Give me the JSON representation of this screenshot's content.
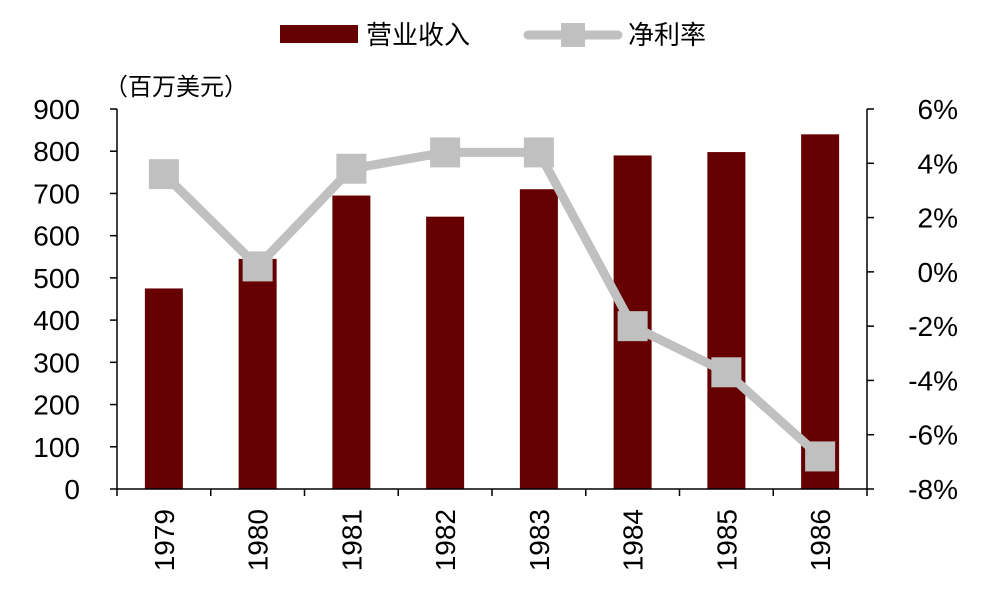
{
  "chart_data": {
    "type": "bar+line",
    "categories": [
      "1979",
      "1980",
      "1981",
      "1982",
      "1983",
      "1984",
      "1985",
      "1986"
    ],
    "series": [
      {
        "name": "营业收入",
        "type": "bar",
        "axis": "left",
        "color": "#660000",
        "values": [
          475,
          545,
          695,
          645,
          710,
          790,
          798,
          840
        ]
      },
      {
        "name": "净利率",
        "type": "line",
        "axis": "right",
        "color": "#c0c0c0",
        "marker": "square",
        "values": [
          3.6,
          0.2,
          3.8,
          4.4,
          4.4,
          -2.0,
          -3.7,
          -6.8
        ]
      }
    ],
    "unit_label": "（百万美元）",
    "left_axis": {
      "ylim": [
        0,
        900
      ],
      "ticks": [
        "0",
        "100",
        "200",
        "300",
        "400",
        "500",
        "600",
        "700",
        "800",
        "900"
      ]
    },
    "right_axis": {
      "ylim": [
        -8,
        6
      ],
      "ticks": [
        "-8%",
        "-6%",
        "-4%",
        "-2%",
        "0%",
        "2%",
        "4%",
        "6%"
      ]
    },
    "legend_position": "top-center",
    "grid": false
  }
}
